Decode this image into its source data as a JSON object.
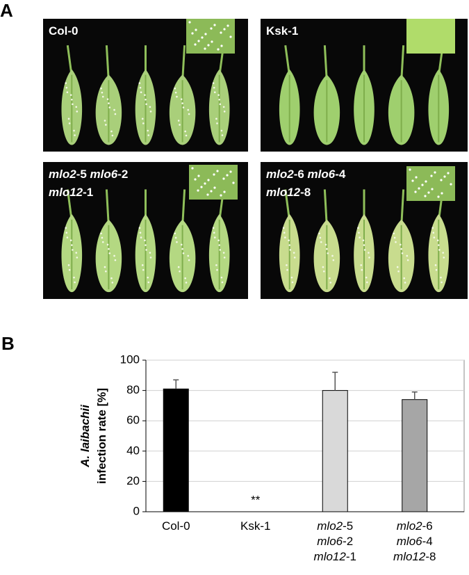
{
  "figure": {
    "panel_a_letter": "A",
    "panel_b_letter": "B",
    "photos": [
      {
        "label": [
          [
            {
              "text": "Col-0",
              "italic": false
            }
          ]
        ]
      },
      {
        "label": [
          [
            {
              "text": "Ksk-1",
              "italic": false
            }
          ]
        ]
      },
      {
        "label": [
          [
            {
              "text": "mlo2",
              "italic": true
            },
            {
              "text": "-5 ",
              "italic": false
            },
            {
              "text": "mlo6",
              "italic": true
            },
            {
              "text": "-2",
              "italic": false
            }
          ],
          [
            {
              "text": "mlo12",
              "italic": true
            },
            {
              "text": "-1",
              "italic": false
            }
          ]
        ]
      },
      {
        "label": [
          [
            {
              "text": "mlo2",
              "italic": true
            },
            {
              "text": "-6 ",
              "italic": false
            },
            {
              "text": "mlo6",
              "italic": true
            },
            {
              "text": "-4",
              "italic": false
            }
          ],
          [
            {
              "text": "mlo12",
              "italic": true
            },
            {
              "text": "-8",
              "italic": false
            }
          ]
        ]
      }
    ]
  },
  "chart_data": {
    "type": "bar",
    "y_label": [
      [
        {
          "text": "A. laibachii",
          "italic": true
        }
      ],
      [
        {
          "text": "infection rate [%]",
          "italic": false
        }
      ]
    ],
    "categories": [
      [
        [
          {
            "text": "Col-0",
            "italic": false
          }
        ]
      ],
      [
        [
          {
            "text": "Ksk-1",
            "italic": false
          }
        ]
      ],
      [
        [
          {
            "text": "mlo2",
            "italic": true
          },
          {
            "text": "-5",
            "italic": false
          }
        ],
        [
          {
            "text": "mlo6",
            "italic": true
          },
          {
            "text": "-2",
            "italic": false
          }
        ],
        [
          {
            "text": "mlo12",
            "italic": true
          },
          {
            "text": "-1",
            "italic": false
          }
        ]
      ],
      [
        [
          {
            "text": "mlo2",
            "italic": true
          },
          {
            "text": "-6",
            "italic": false
          }
        ],
        [
          {
            "text": "mlo6",
            "italic": true
          },
          {
            "text": "-4",
            "italic": false
          }
        ],
        [
          {
            "text": "mlo12",
            "italic": true
          },
          {
            "text": "-8",
            "italic": false
          }
        ]
      ]
    ],
    "values": [
      81,
      0,
      80,
      74
    ],
    "errors": [
      6,
      null,
      12,
      5
    ],
    "colors": [
      "#000000",
      "#ffffff",
      "#d9d9d9",
      "#a6a6a6"
    ],
    "annotations": [
      {
        "text": "**",
        "category": 1
      }
    ],
    "ylim": [
      0,
      100
    ],
    "yticks": [
      0,
      20,
      40,
      60,
      80,
      100
    ],
    "grid": true
  }
}
